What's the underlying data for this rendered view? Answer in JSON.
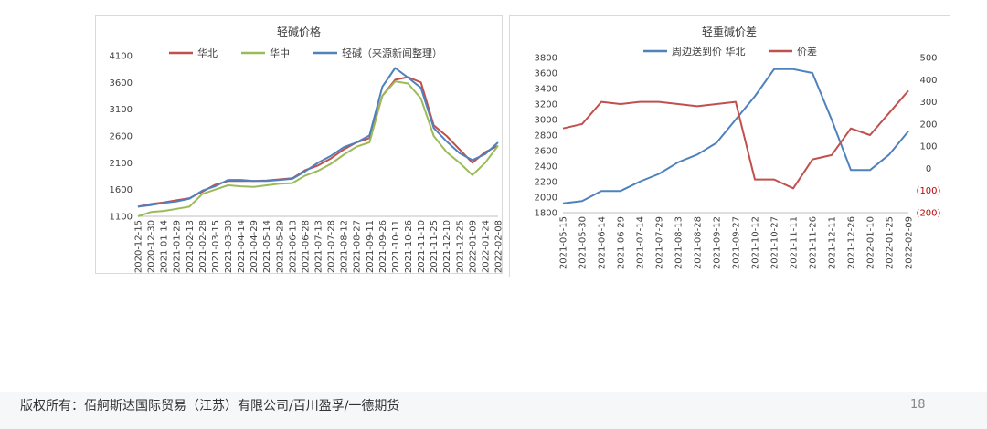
{
  "footer": {
    "copyright": "版权所有：佰舸斯达国际贸易（江苏）有限公司/百川盈孚/一德期货",
    "page": "18"
  },
  "chart_data": [
    {
      "type": "line",
      "title": "轻碱价格",
      "ylim": [
        1100,
        4100
      ],
      "yticks": [
        1100,
        1600,
        2100,
        2600,
        3100,
        3600,
        4100
      ],
      "grid": false,
      "legend": "top",
      "xticks": [
        "2020-12-15",
        "2020-12-30",
        "2021-01-14",
        "2021-01-29",
        "2021-02-13",
        "2021-02-28",
        "2021-03-15",
        "2021-03-30",
        "2021-04-14",
        "2021-04-29",
        "2021-05-14",
        "2021-05-29",
        "2021-06-13",
        "2021-06-28",
        "2021-07-13",
        "2021-07-28",
        "2021-08-12",
        "2021-08-27",
        "2021-09-11",
        "2021-09-26",
        "2021-10-11",
        "2021-10-26",
        "2021-11-10",
        "2021-11-25",
        "2021-12-10",
        "2021-12-25",
        "2022-01-09",
        "2022-01-24",
        "2022-02-08"
      ],
      "series": [
        {
          "name": "华北",
          "color": "#c0504d",
          "values": [
            1280,
            1330,
            1360,
            1400,
            1440,
            1560,
            1690,
            1760,
            1760,
            1760,
            1770,
            1790,
            1810,
            1960,
            2050,
            2180,
            2350,
            2480,
            2560,
            3350,
            3650,
            3700,
            3600,
            2800,
            2600,
            2350,
            2100,
            2300,
            2420
          ]
        },
        {
          "name": "华中",
          "color": "#9bbb59",
          "values": [
            1100,
            1180,
            1200,
            1240,
            1280,
            1520,
            1600,
            1680,
            1660,
            1650,
            1680,
            1710,
            1720,
            1860,
            1950,
            2080,
            2250,
            2400,
            2480,
            3350,
            3620,
            3580,
            3300,
            2600,
            2300,
            2100,
            1870,
            2100,
            2420
          ]
        },
        {
          "name": "轻碱（来源新闻整理）",
          "color": "#4f81bd",
          "values": [
            1280,
            1310,
            1350,
            1380,
            1430,
            1580,
            1660,
            1780,
            1780,
            1760,
            1760,
            1780,
            1800,
            1940,
            2100,
            2230,
            2390,
            2480,
            2610,
            3520,
            3870,
            3690,
            3500,
            2750,
            2500,
            2280,
            2150,
            2260,
            2480
          ]
        }
      ]
    },
    {
      "type": "line",
      "title": "轻重碱价差",
      "ylim": [
        1800,
        3800
      ],
      "yticks": [
        1800,
        2000,
        2200,
        2400,
        2600,
        2800,
        3000,
        3200,
        3400,
        3600,
        3800
      ],
      "y2lim": [
        -200,
        500
      ],
      "y2ticks": [
        500,
        400,
        300,
        200,
        100,
        0,
        -100,
        -200
      ],
      "y2ticklabels": [
        "500",
        "400",
        "300",
        "200",
        "100",
        "0",
        "(100)",
        "(200)"
      ],
      "grid": false,
      "legend": "top",
      "xticks": [
        "2021-05-15",
        "2021-05-30",
        "2021-06-14",
        "2021-06-29",
        "2021-07-14",
        "2021-07-29",
        "2021-08-13",
        "2021-08-28",
        "2021-09-12",
        "2021-09-27",
        "2021-10-12",
        "2021-10-27",
        "2021-11-11",
        "2021-11-26",
        "2021-12-11",
        "2021-12-26",
        "2022-01-10",
        "2022-01-25",
        "2022-02-09"
      ],
      "series": [
        {
          "name": "周边送到价 华北",
          "axis": "left",
          "color": "#4f81bd",
          "values": [
            1920,
            1950,
            2080,
            2080,
            2200,
            2300,
            2450,
            2550,
            2700,
            3000,
            3300,
            3650,
            3650,
            3600,
            3000,
            2350,
            2350,
            2550,
            2850
          ]
        },
        {
          "name": "价差",
          "axis": "right",
          "color": "#c0504d",
          "values": [
            180,
            200,
            300,
            290,
            300,
            300,
            290,
            280,
            290,
            300,
            -50,
            -50,
            -90,
            40,
            60,
            180,
            150,
            250,
            350
          ]
        }
      ]
    }
  ]
}
